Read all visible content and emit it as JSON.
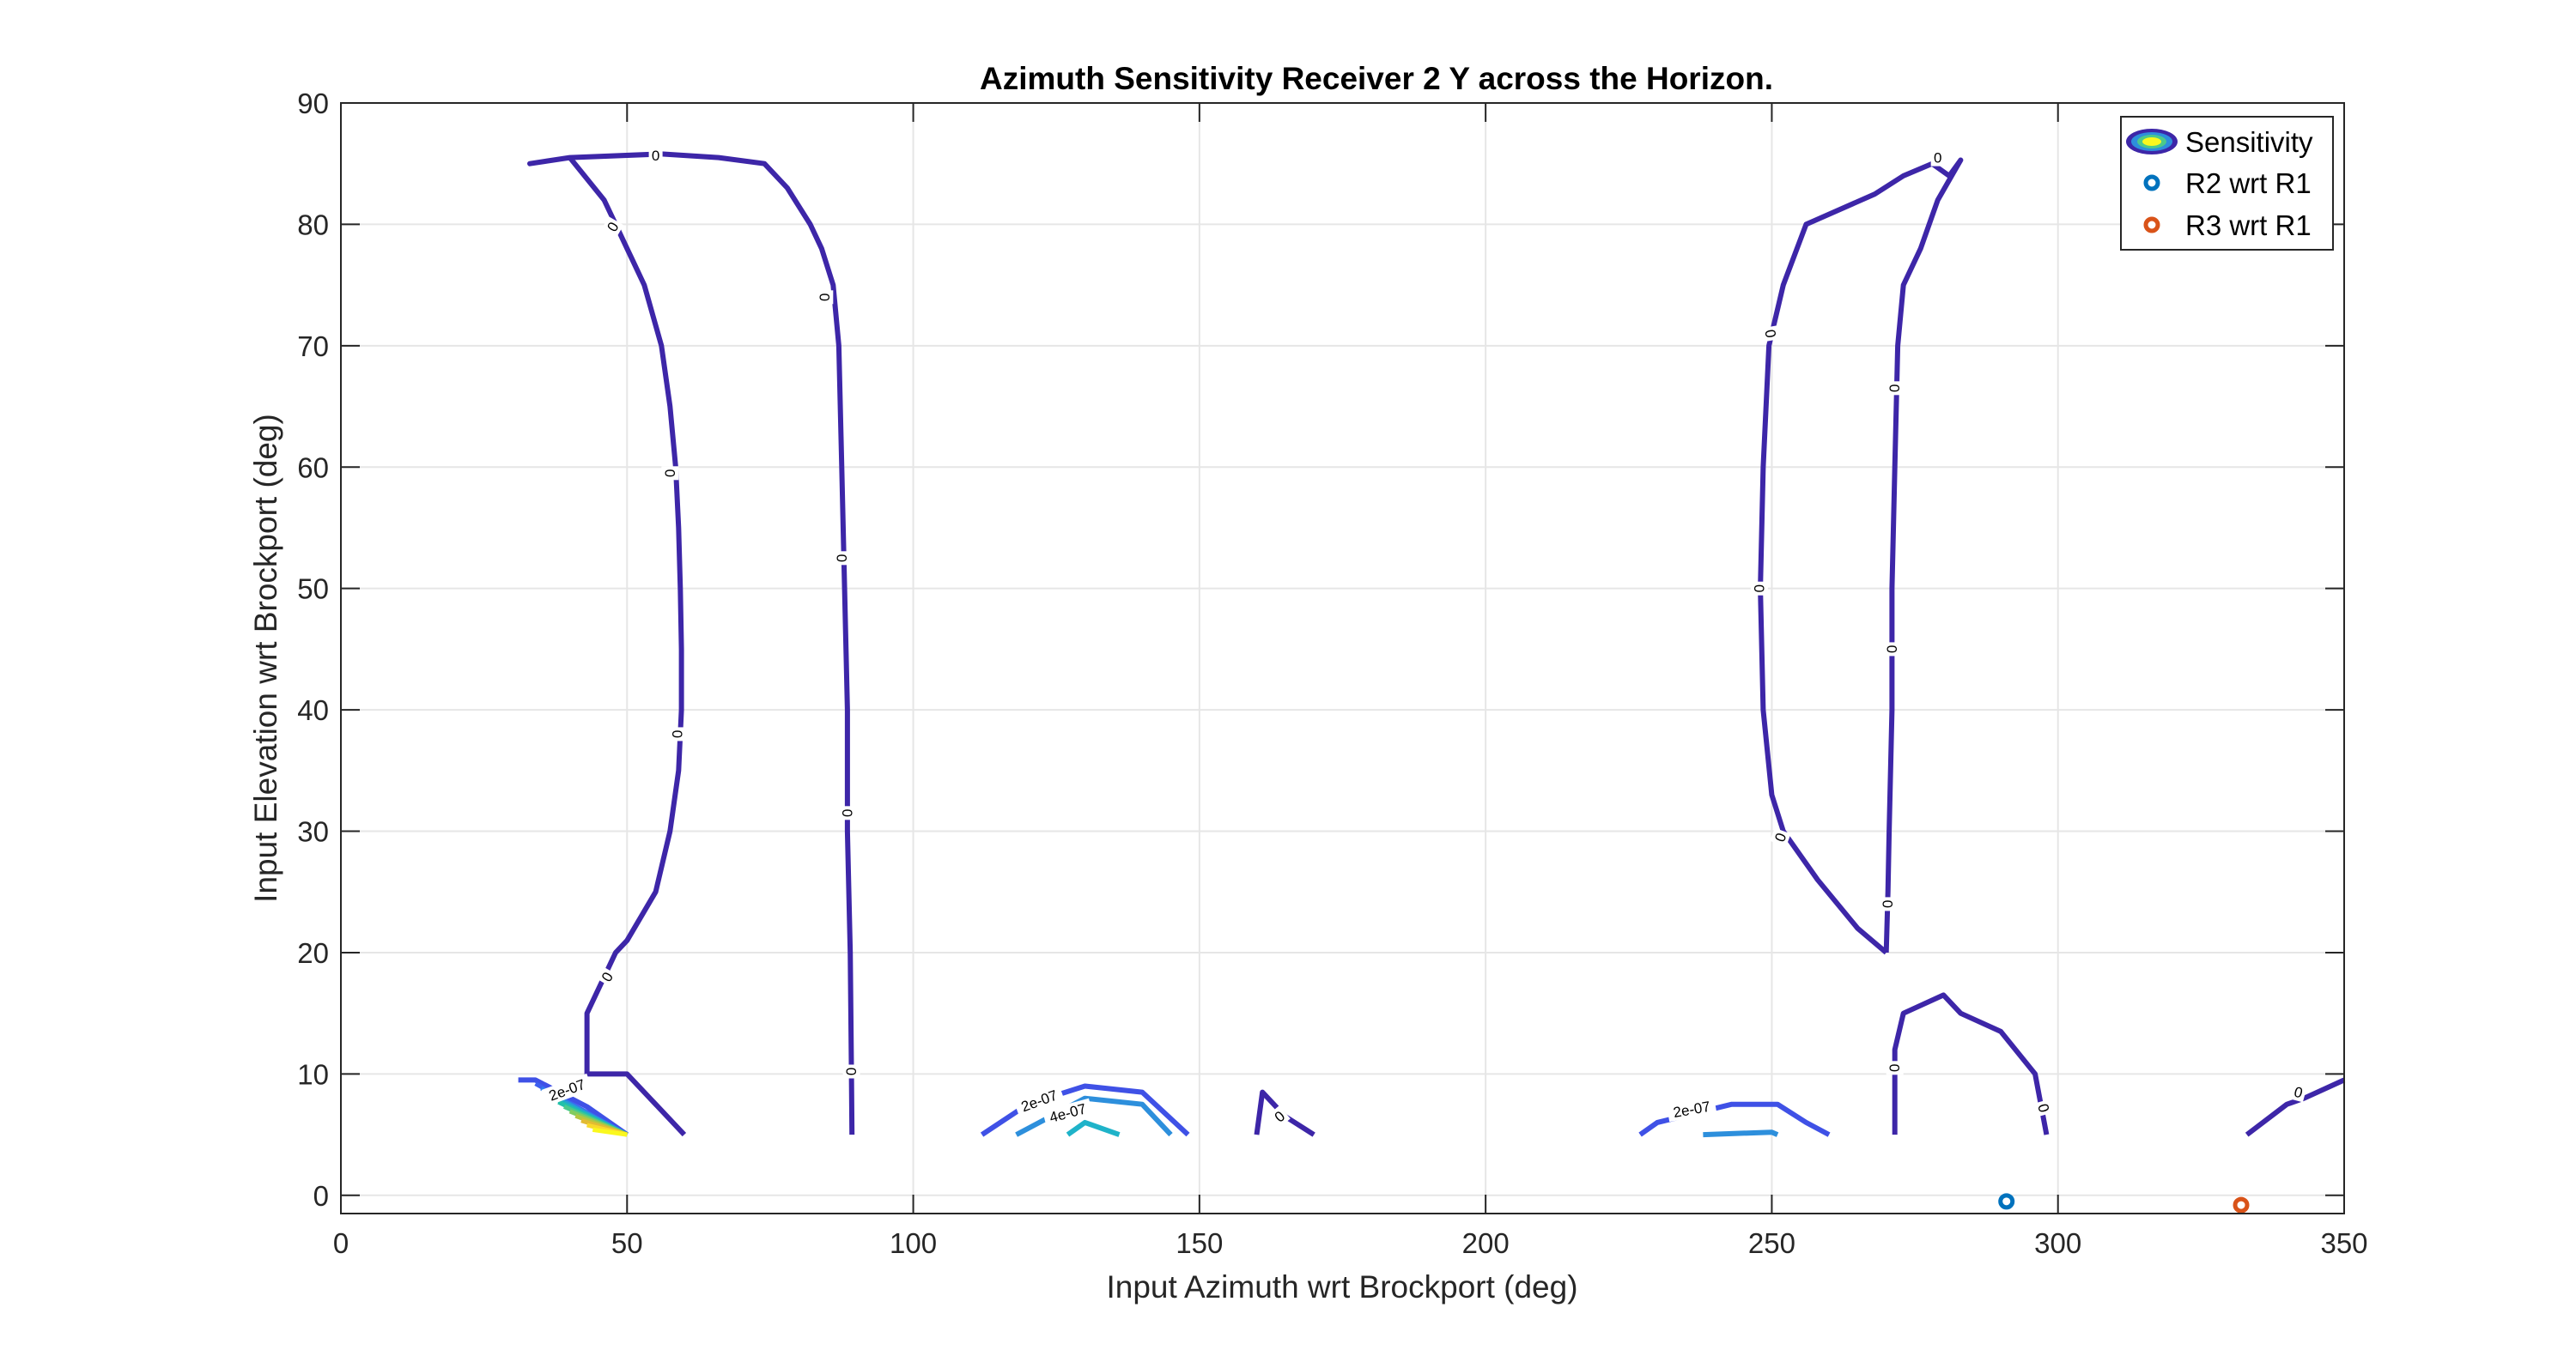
{
  "chart_data": {
    "type": "contour",
    "title": "Azimuth Sensitivity Receiver 2 Y across the Horizon.",
    "xlabel": "Input Azimuth wrt Brockport (deg)",
    "ylabel": "Input Elevation wrt Brockport (deg)",
    "xlim": [
      0,
      350
    ],
    "ylim": [
      -1.5,
      90
    ],
    "xticks": [
      0,
      50,
      100,
      150,
      200,
      250,
      300,
      350
    ],
    "yticks": [
      0,
      10,
      20,
      30,
      40,
      50,
      60,
      70,
      80,
      90
    ],
    "grid": true,
    "legend": {
      "placement": "top-right",
      "entries": [
        "Sensitivity",
        "R2 wrt R1",
        "R3 wrt R1"
      ]
    },
    "colors": {
      "zero": "#3d26a8",
      "level1": "#3f51e6",
      "level2": "#2d8fdc",
      "level3": "#1fb3c9",
      "r2": "#0072bd",
      "r3": "#d95319"
    },
    "contours": [
      {
        "level": "0",
        "color": "#3d26a8",
        "points": [
          [
            60,
            5
          ],
          [
            50,
            10
          ],
          [
            43,
            10
          ],
          [
            43,
            15
          ],
          [
            48,
            20
          ],
          [
            50,
            21
          ],
          [
            55,
            25
          ],
          [
            57.5,
            30
          ],
          [
            59,
            35
          ],
          [
            59.5,
            40
          ],
          [
            59.5,
            45
          ],
          [
            59.3,
            50
          ],
          [
            59,
            55
          ],
          [
            58.5,
            60
          ],
          [
            57.5,
            65
          ],
          [
            56,
            70
          ],
          [
            53,
            75
          ],
          [
            51,
            77
          ],
          [
            50,
            78
          ],
          [
            48,
            80
          ],
          [
            46,
            82
          ],
          [
            40,
            85.5
          ],
          [
            33,
            85
          ],
          [
            40,
            85.5
          ],
          [
            56,
            85.8
          ],
          [
            66,
            85.5
          ],
          [
            74,
            85
          ],
          [
            78,
            83
          ],
          [
            82,
            80
          ],
          [
            84,
            78
          ],
          [
            86,
            75
          ],
          [
            87,
            70
          ],
          [
            87.5,
            60
          ],
          [
            88,
            50
          ],
          [
            88.5,
            40
          ],
          [
            88.5,
            30
          ],
          [
            89,
            20
          ],
          [
            89.2,
            10
          ],
          [
            89.3,
            5
          ]
        ]
      },
      {
        "level": "0",
        "color": "#3d26a8",
        "points": [
          [
            160,
            5
          ],
          [
            161,
            8.5
          ],
          [
            165,
            6.5
          ],
          [
            170,
            5
          ]
        ]
      },
      {
        "level": "0",
        "color": "#3d26a8",
        "points": [
          [
            270,
            20
          ],
          [
            265,
            22
          ],
          [
            258,
            26
          ],
          [
            252,
            30
          ],
          [
            250,
            33
          ],
          [
            248.5,
            40
          ],
          [
            248,
            50
          ],
          [
            248.5,
            60
          ],
          [
            249.5,
            70
          ],
          [
            252,
            75
          ],
          [
            256,
            80
          ],
          [
            268,
            82.5
          ],
          [
            273,
            84
          ],
          [
            278,
            85
          ],
          [
            281,
            84
          ],
          [
            283,
            85.3
          ],
          [
            279,
            82
          ],
          [
            276,
            78
          ],
          [
            273,
            75
          ],
          [
            272,
            70
          ],
          [
            271.5,
            60
          ],
          [
            271,
            50
          ],
          [
            271,
            40
          ],
          [
            270.5,
            30
          ],
          [
            270.3,
            25
          ],
          [
            270,
            20
          ]
        ]
      },
      {
        "level": "0",
        "color": "#3d26a8",
        "points": [
          [
            271.5,
            5
          ],
          [
            271.5,
            12
          ],
          [
            273,
            15
          ],
          [
            280,
            16.5
          ],
          [
            283,
            15
          ],
          [
            290,
            13.5
          ],
          [
            296,
            10
          ],
          [
            298,
            5
          ]
        ]
      },
      {
        "level": "0",
        "color": "#3d26a8",
        "points": [
          [
            333,
            5
          ],
          [
            340,
            7.5
          ],
          [
            343,
            8
          ],
          [
            350,
            9.5
          ]
        ]
      },
      {
        "level": "2e-07",
        "color": "#3f51e6",
        "points": [
          [
            31,
            9.5
          ],
          [
            34,
            9.5
          ],
          [
            43,
            7.3
          ],
          [
            50,
            5
          ]
        ]
      },
      {
        "level": "2e-07",
        "color": "#3f51e6",
        "points": [
          [
            112,
            5
          ],
          [
            120,
            7.5
          ],
          [
            130,
            9
          ],
          [
            140,
            8.5
          ],
          [
            148,
            5
          ]
        ]
      },
      {
        "level": "4e-07",
        "color": "#2d8fdc",
        "points": [
          [
            118,
            5
          ],
          [
            130,
            8
          ],
          [
            140,
            7.5
          ],
          [
            145,
            5
          ]
        ]
      },
      {
        "level": "6e-07",
        "color": "#1fb3c9",
        "points": [
          [
            127,
            5
          ],
          [
            130,
            6
          ],
          [
            136,
            5
          ]
        ]
      },
      {
        "level": "2e-07",
        "color": "#3f51e6",
        "points": [
          [
            227,
            5
          ],
          [
            230,
            6
          ],
          [
            243,
            7.5
          ],
          [
            251,
            7.5
          ],
          [
            256,
            6
          ],
          [
            260,
            5
          ]
        ]
      },
      {
        "level": "4e-07",
        "color": "#2d8fdc",
        "points": [
          [
            238,
            5
          ],
          [
            250,
            5.2
          ],
          [
            251,
            5
          ]
        ]
      }
    ],
    "corner_contours": {
      "region": "x 32-50, y 5-9",
      "colors": [
        "#3d5ff0",
        "#2f7ee9",
        "#2c98d9",
        "#1faec5",
        "#22c1a9",
        "#4cc98b",
        "#82cc5f",
        "#b6c640",
        "#e2bb33",
        "#f9d92b",
        "#faf81e"
      ]
    },
    "contour_labels": [
      {
        "text": "0",
        "x": 55,
        "y": 85.7,
        "rot": 0
      },
      {
        "text": "0",
        "x": 47.5,
        "y": 79.8,
        "rot": -60
      },
      {
        "text": "0",
        "x": 57.5,
        "y": 59.5,
        "rot": 90
      },
      {
        "text": "0",
        "x": 58.8,
        "y": 38,
        "rot": 90
      },
      {
        "text": "0",
        "x": 46.5,
        "y": 18,
        "rot": -60
      },
      {
        "text": "0",
        "x": 84.5,
        "y": 74,
        "rot": 90
      },
      {
        "text": "0",
        "x": 87.5,
        "y": 52.5,
        "rot": 90
      },
      {
        "text": "0",
        "x": 88.5,
        "y": 31.5,
        "rot": 90
      },
      {
        "text": "0",
        "x": 89.2,
        "y": 10.2,
        "rot": 90
      },
      {
        "text": "0",
        "x": 164,
        "y": 6.5,
        "rot": -40
      },
      {
        "text": "0",
        "x": 249.8,
        "y": 71,
        "rot": 80
      },
      {
        "text": "0",
        "x": 247.8,
        "y": 50,
        "rot": 90
      },
      {
        "text": "0",
        "x": 251.5,
        "y": 29.5,
        "rot": -70
      },
      {
        "text": "0",
        "x": 279,
        "y": 85.5,
        "rot": 0
      },
      {
        "text": "0",
        "x": 271.5,
        "y": 66.5,
        "rot": 90
      },
      {
        "text": "0",
        "x": 271,
        "y": 45,
        "rot": 90
      },
      {
        "text": "0",
        "x": 270.3,
        "y": 24,
        "rot": 90
      },
      {
        "text": "0",
        "x": 271.5,
        "y": 10.5,
        "rot": 90
      },
      {
        "text": "0",
        "x": 297.5,
        "y": 7.2,
        "rot": 75
      },
      {
        "text": "0",
        "x": 342,
        "y": 8.5,
        "rot": 15
      },
      {
        "text": "2e-07",
        "x": 39.5,
        "y": 8.7,
        "rot": -20
      },
      {
        "text": "2e-07",
        "x": 122,
        "y": 7.8,
        "rot": -20
      },
      {
        "text": "4e-07",
        "x": 127,
        "y": 6.8,
        "rot": -15
      },
      {
        "text": "2e-07",
        "x": 236,
        "y": 7.1,
        "rot": -10
      }
    ],
    "markers": [
      {
        "name": "R2 wrt R1",
        "x": 291,
        "y": -0.5,
        "color": "#0072bd"
      },
      {
        "name": "R3 wrt R1",
        "x": 332,
        "y": -0.8,
        "color": "#d95319"
      }
    ]
  }
}
